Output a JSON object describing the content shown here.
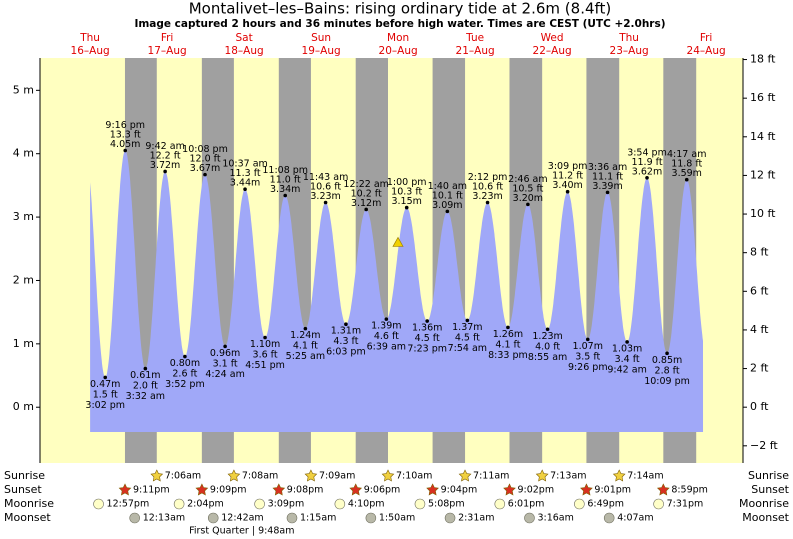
{
  "chart_data": {
    "type": "tide",
    "title": "Montalivet–les–Bains: rising  ordinary tide at 2.6m (8.4ft)",
    "subtitle": "Image captured 2 hours and 36 minutes before high water. Times are CEST (UTC +2.0hrs)",
    "current_level": 2.6,
    "ylim": [
      -0.88,
      5.51
    ],
    "yticks": [
      {
        "value": 0,
        "label": "0 m"
      },
      {
        "value": 1,
        "label": "1 m"
      },
      {
        "value": 2,
        "label": "2 m"
      },
      {
        "value": 3,
        "label": "3 m"
      },
      {
        "value": 4,
        "label": "4 m"
      },
      {
        "value": 5,
        "label": "5 m"
      }
    ],
    "y2lim": [
      -2.89,
      18.08
    ],
    "y2ticks": [
      {
        "value": -2,
        "label": "−2 ft"
      },
      {
        "value": 0,
        "label": "0 ft"
      },
      {
        "value": 2,
        "label": "2 ft"
      },
      {
        "value": 4,
        "label": "4 ft"
      },
      {
        "value": 6,
        "label": "6 ft"
      },
      {
        "value": 8,
        "label": "8 ft"
      },
      {
        "value": 10,
        "label": "10 ft"
      },
      {
        "value": 12,
        "label": "12 ft"
      },
      {
        "value": 14,
        "label": "14 ft"
      },
      {
        "value": 16,
        "label": "16 ft"
      },
      {
        "value": 18,
        "label": "18 ft"
      }
    ],
    "row_labels": [
      "Sunrise",
      "Sunset",
      "Moonrise",
      "Moonset"
    ],
    "colors": {
      "day": "#ffffc0",
      "night": "#a0a0a0",
      "water": "#a0a8f8"
    },
    "days": [
      {
        "weekday": "Thu",
        "date": "16–Aug",
        "sunset": "9:11pm",
        "moonrise": "12:57pm",
        "extremes": [
          {
            "time": "3:02 pm",
            "ft": {
              "value": 1.5,
              "label": "1.5 ft"
            },
            "m": {
              "value": 0.47,
              "label": "0.47m"
            }
          },
          {
            "time": "9:16 pm",
            "ft": {
              "value": 13.3,
              "label": "13.3 ft"
            },
            "m": {
              "value": 4.05,
              "label": "4.05m"
            }
          }
        ]
      },
      {
        "weekday": "Fri",
        "date": "17–Aug",
        "sunrise": "7:06am",
        "sunset": "9:09pm",
        "moonrise": "2:04pm",
        "moonset": "12:13am",
        "extremes": [
          {
            "time": "3:32 am",
            "ft": {
              "value": 2.0,
              "label": "2.0 ft"
            },
            "m": {
              "value": 0.61,
              "label": "0.61m"
            }
          },
          {
            "time": "9:42 am",
            "ft": {
              "value": 12.2,
              "label": "12.2 ft"
            },
            "m": {
              "value": 3.72,
              "label": "3.72m"
            }
          },
          {
            "time": "3:52 pm",
            "ft": {
              "value": 2.6,
              "label": "2.6 ft"
            },
            "m": {
              "value": 0.8,
              "label": "0.80m"
            }
          },
          {
            "time": "10:08 pm",
            "ft": {
              "value": 12.0,
              "label": "12.0 ft"
            },
            "m": {
              "value": 3.67,
              "label": "3.67m"
            }
          }
        ]
      },
      {
        "weekday": "Sat",
        "date": "18–Aug",
        "sunrise": "7:08am",
        "sunset": "9:08pm",
        "moonrise": "3:09pm",
        "moonset": "12:42am",
        "moon_phase": "First Quarter | 9:48am",
        "extremes": [
          {
            "time": "4:24 am",
            "ft": {
              "value": 3.1,
              "label": "3.1 ft"
            },
            "m": {
              "value": 0.96,
              "label": "0.96m"
            }
          },
          {
            "time": "10:37 am",
            "ft": {
              "value": 11.3,
              "label": "11.3 ft"
            },
            "m": {
              "value": 3.44,
              "label": "3.44m"
            }
          },
          {
            "time": "4:51 pm",
            "ft": {
              "value": 3.6,
              "label": "3.6 ft"
            },
            "m": {
              "value": 1.1,
              "label": "1.10m"
            }
          },
          {
            "time": "11:08 pm",
            "ft": {
              "value": 11.0,
              "label": "11.0 ft"
            },
            "m": {
              "value": 3.34,
              "label": "3.34m"
            }
          }
        ]
      },
      {
        "weekday": "Sun",
        "date": "19–Aug",
        "sunrise": "7:09am",
        "sunset": "9:06pm",
        "moonrise": "4:10pm",
        "moonset": "1:15am",
        "extremes": [
          {
            "time": "5:25 am",
            "ft": {
              "value": 4.1,
              "label": "4.1 ft"
            },
            "m": {
              "value": 1.24,
              "label": "1.24m"
            }
          },
          {
            "time": "11:43 am",
            "ft": {
              "value": 10.6,
              "label": "10.6 ft"
            },
            "m": {
              "value": 3.23,
              "label": "3.23m"
            }
          },
          {
            "time": "6:03 pm",
            "ft": {
              "value": 4.3,
              "label": "4.3 ft"
            },
            "m": {
              "value": 1.31,
              "label": "1.31m"
            }
          }
        ]
      },
      {
        "weekday": "Mon",
        "date": "20–Aug",
        "sunrise": "7:10am",
        "sunset": "9:04pm",
        "moonrise": "5:08pm",
        "moonset": "1:50am",
        "extremes": [
          {
            "time": "12:22 am",
            "ft": {
              "value": 10.2,
              "label": "10.2 ft"
            },
            "m": {
              "value": 3.12,
              "label": "3.12m"
            }
          },
          {
            "time": "6:39 am",
            "ft": {
              "value": 4.6,
              "label": "4.6 ft"
            },
            "m": {
              "value": 1.39,
              "label": "1.39m"
            }
          },
          {
            "time": "1:00 pm",
            "ft": {
              "value": 10.3,
              "label": "10.3 ft"
            },
            "m": {
              "value": 3.15,
              "label": "3.15m"
            }
          },
          {
            "time": "7:23 pm",
            "ft": {
              "value": 4.5,
              "label": "4.5 ft"
            },
            "m": {
              "value": 1.36,
              "label": "1.36m"
            }
          }
        ]
      },
      {
        "weekday": "Tue",
        "date": "21–Aug",
        "sunrise": "7:11am",
        "sunset": "9:02pm",
        "moonrise": "6:01pm",
        "moonset": "2:31am",
        "extremes": [
          {
            "time": "1:40 am",
            "ft": {
              "value": 10.1,
              "label": "10.1 ft"
            },
            "m": {
              "value": 3.09,
              "label": "3.09m"
            }
          },
          {
            "time": "7:54 am",
            "ft": {
              "value": 4.5,
              "label": "4.5 ft"
            },
            "m": {
              "value": 1.37,
              "label": "1.37m"
            }
          },
          {
            "time": "2:12 pm",
            "ft": {
              "value": 10.6,
              "label": "10.6 ft"
            },
            "m": {
              "value": 3.23,
              "label": "3.23m"
            }
          },
          {
            "time": "8:33 pm",
            "ft": {
              "value": 4.1,
              "label": "4.1 ft"
            },
            "m": {
              "value": 1.26,
              "label": "1.26m"
            }
          }
        ]
      },
      {
        "weekday": "Wed",
        "date": "22–Aug",
        "sunrise": "7:13am",
        "sunset": "9:01pm",
        "moonrise": "6:49pm",
        "moonset": "3:16am",
        "extremes": [
          {
            "time": "2:46 am",
            "ft": {
              "value": 10.5,
              "label": "10.5 ft"
            },
            "m": {
              "value": 3.2,
              "label": "3.20m"
            }
          },
          {
            "time": "8:55 am",
            "ft": {
              "value": 4.0,
              "label": "4.0 ft"
            },
            "m": {
              "value": 1.23,
              "label": "1.23m"
            }
          },
          {
            "time": "3:09 pm",
            "ft": {
              "value": 11.2,
              "label": "11.2 ft"
            },
            "m": {
              "value": 3.4,
              "label": "3.40m"
            }
          },
          {
            "time": "9:26 pm",
            "ft": {
              "value": 3.5,
              "label": "3.5 ft"
            },
            "m": {
              "value": 1.07,
              "label": "1.07m"
            }
          }
        ]
      },
      {
        "weekday": "Thu",
        "date": "23–Aug",
        "sunrise": "7:14am",
        "sunset": "8:59pm",
        "moonrise": "7:31pm",
        "moonset": "4:07am",
        "extremes": [
          {
            "time": "3:36 am",
            "ft": {
              "value": 11.1,
              "label": "11.1 ft"
            },
            "m": {
              "value": 3.39,
              "label": "3.39m"
            }
          },
          {
            "time": "9:42 am",
            "ft": {
              "value": 3.4,
              "label": "3.4 ft"
            },
            "m": {
              "value": 1.03,
              "label": "1.03m"
            }
          },
          {
            "time": "3:54 pm",
            "ft": {
              "value": 11.9,
              "label": "11.9 ft"
            },
            "m": {
              "value": 3.62,
              "label": "3.62m"
            }
          },
          {
            "time": "10:09 pm",
            "ft": {
              "value": 2.8,
              "label": "2.8 ft"
            },
            "m": {
              "value": 0.85,
              "label": "0.85m"
            }
          }
        ]
      },
      {
        "weekday": "Fri",
        "date": "24–Aug",
        "extremes": [
          {
            "time": "4:17 am",
            "ft": {
              "value": 11.8,
              "label": "11.8 ft"
            },
            "m": {
              "value": 3.59,
              "label": "3.59m"
            }
          }
        ]
      }
    ]
  }
}
